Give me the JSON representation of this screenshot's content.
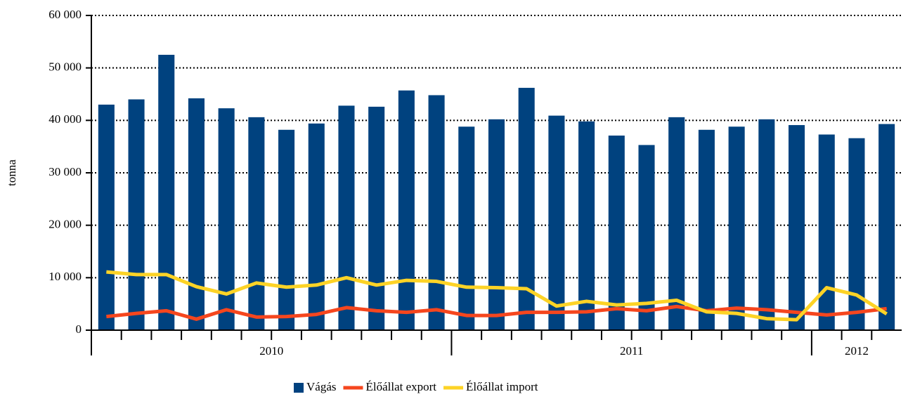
{
  "chart_data": {
    "type": "bar_line",
    "y_label": "tonna",
    "categories": [
      null,
      null,
      null,
      null,
      null,
      null,
      null,
      null,
      null,
      null,
      null,
      null,
      null,
      null,
      null,
      null,
      null,
      null,
      null,
      null,
      null,
      null,
      null,
      null,
      null,
      null,
      null
    ],
    "x_groups": [
      {
        "label": "2010",
        "span": 12
      },
      {
        "label": "2011",
        "span": 12
      },
      {
        "label": "2012",
        "span": 3
      }
    ],
    "series": [
      {
        "name": "Vágás",
        "type": "bar",
        "color": "#00427f",
        "values": [
          43000,
          44000,
          52500,
          44200,
          42300,
          40600,
          38200,
          39400,
          42800,
          42600,
          45700,
          44800,
          38800,
          40200,
          46200,
          40900,
          39800,
          37100,
          35300,
          40600,
          38200,
          38800,
          40200,
          39100,
          37300,
          36600,
          39300
        ]
      },
      {
        "name": "Élőállat export",
        "type": "line",
        "color": "#f5461e",
        "values": [
          2600,
          3200,
          3700,
          2100,
          3900,
          2500,
          2600,
          3000,
          4300,
          3700,
          3400,
          3900,
          2800,
          2800,
          3400,
          3400,
          3500,
          4100,
          3700,
          4500,
          3700,
          4200,
          3900,
          3400,
          2900,
          3400,
          4100
        ]
      },
      {
        "name": "Élőállat import",
        "type": "line",
        "color": "#fdd326",
        "values": [
          11100,
          10600,
          10600,
          8300,
          6900,
          9000,
          8200,
          8600,
          10000,
          8600,
          9500,
          9300,
          8200,
          8100,
          7900,
          4600,
          5500,
          4800,
          5100,
          5700,
          3500,
          3200,
          2200,
          2000,
          8100,
          6700,
          3100
        ]
      }
    ],
    "ylim": [
      0,
      60000
    ],
    "yticks": [
      0,
      {
        "value": 10000,
        "label": "10 000"
      },
      {
        "value": 20000,
        "label": "20 000"
      },
      {
        "value": 30000,
        "label": "30 000"
      },
      {
        "value": 40000,
        "label": "40 000"
      },
      {
        "value": 50000,
        "label": "50 000"
      },
      {
        "value": 60000,
        "label": "60 000"
      }
    ],
    "grid": true,
    "legend": "bottom"
  }
}
